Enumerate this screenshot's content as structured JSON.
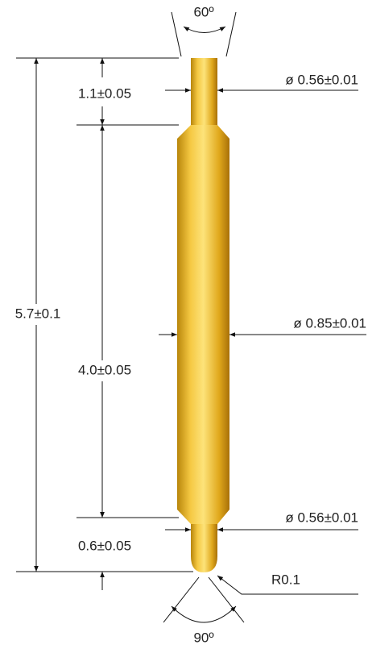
{
  "drawing": {
    "top_angle": "60º",
    "tip_length": "1.1±0.05",
    "tip_diameter": "ø 0.56±0.01",
    "total_length": "5.7±0.1",
    "body_diameter": "ø 0.85±0.01",
    "body_length": "4.0±0.05",
    "bottom_diameter": "ø 0.56±0.01",
    "bottom_length": "0.6±0.05",
    "tip_radius": "R0.1",
    "bottom_angle": "90º"
  }
}
